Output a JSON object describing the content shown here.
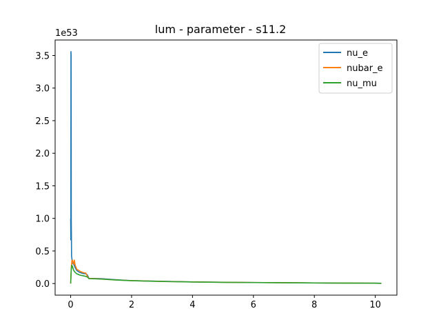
{
  "chart_data": {
    "type": "line",
    "title": "lum - parameter - s11.2",
    "xlabel": "",
    "ylabel": "",
    "y_offset_label": "1e53",
    "xlim": [
      -0.51,
      10.71
    ],
    "ylim": [
      -0.178,
      3.738
    ],
    "xticks": [
      0,
      2,
      4,
      6,
      8,
      10
    ],
    "xtick_labels": [
      "0",
      "2",
      "4",
      "6",
      "8",
      "10"
    ],
    "yticks": [
      0.0,
      0.5,
      1.0,
      1.5,
      2.0,
      2.5,
      3.0,
      3.5
    ],
    "ytick_labels": [
      "0.0",
      "0.5",
      "1.0",
      "1.5",
      "2.0",
      "2.5",
      "3.0",
      "3.5"
    ],
    "legend_position": "upper-right",
    "series": [
      {
        "name": "nu_e",
        "color": "#1f77b4",
        "x": [
          0,
          0.005,
          0.01,
          0.015,
          0.02,
          0.03,
          0.05,
          0.08,
          0.1,
          0.15,
          0.2,
          0.3,
          0.4,
          0.5,
          0.55,
          0.6,
          0.8,
          1,
          1.5,
          2,
          3,
          4,
          5,
          6,
          7,
          8,
          9,
          10,
          10.2
        ],
        "values": [
          1.0,
          0.67,
          3.56,
          3.5,
          1.0,
          0.42,
          0.35,
          0.3,
          0.3,
          0.24,
          0.2,
          0.17,
          0.155,
          0.15,
          0.13,
          0.08,
          0.078,
          0.075,
          0.058,
          0.045,
          0.035,
          0.025,
          0.02,
          0.016,
          0.013,
          0.01,
          0.007,
          0.005,
          0.004
        ]
      },
      {
        "name": "nubar_e",
        "color": "#ff7f0e",
        "x": [
          0,
          0.02,
          0.04,
          0.06,
          0.08,
          0.1,
          0.12,
          0.15,
          0.2,
          0.3,
          0.4,
          0.5,
          0.55,
          0.6,
          0.8,
          1,
          1.5,
          2,
          3,
          4,
          5,
          6,
          7,
          8,
          9,
          10,
          10.2
        ],
        "values": [
          0.0,
          0.25,
          0.35,
          0.36,
          0.32,
          0.3,
          0.36,
          0.28,
          0.22,
          0.19,
          0.17,
          0.16,
          0.11,
          0.08,
          0.075,
          0.07,
          0.055,
          0.045,
          0.033,
          0.025,
          0.02,
          0.016,
          0.013,
          0.01,
          0.007,
          0.005,
          0.004
        ]
      },
      {
        "name": "nu_mu",
        "color": "#2ca02c",
        "x": [
          0,
          0.02,
          0.04,
          0.06,
          0.08,
          0.1,
          0.15,
          0.2,
          0.3,
          0.4,
          0.5,
          0.55,
          0.6,
          0.8,
          1,
          1.5,
          2,
          3,
          4,
          5,
          6,
          7,
          8,
          9,
          10,
          10.2
        ],
        "values": [
          0.0,
          0.22,
          0.28,
          0.26,
          0.23,
          0.2,
          0.17,
          0.15,
          0.13,
          0.12,
          0.11,
          0.1,
          0.075,
          0.072,
          0.068,
          0.054,
          0.044,
          0.032,
          0.024,
          0.019,
          0.015,
          0.012,
          0.009,
          0.007,
          0.005,
          0.004
        ]
      }
    ]
  }
}
